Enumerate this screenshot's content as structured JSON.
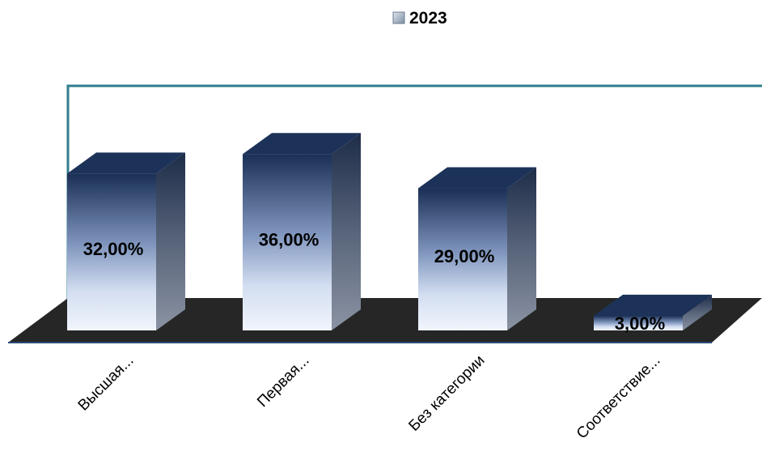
{
  "chart_data": {
    "type": "bar",
    "categories": [
      "Высшая...",
      "Первая...",
      "Без категории",
      "Соответствие..."
    ],
    "series": [
      {
        "name": "2023",
        "values": [
          32,
          36,
          29,
          3
        ]
      }
    ],
    "data_labels": [
      "32,00%",
      "36,00%",
      "29,00%",
      "3,00%"
    ],
    "legend_position": "top",
    "ylim": [
      0,
      40
    ],
    "grid": false,
    "colors": {
      "bar_top": "#1c3258",
      "bar_front_top": "#1a2f55",
      "bar_front_bottom": "#eef3fb",
      "bar_side": "#6a7487",
      "floor": "#262626",
      "wall_border": "#2f7d8e",
      "legend_swatch": "#9aa8b8"
    }
  }
}
